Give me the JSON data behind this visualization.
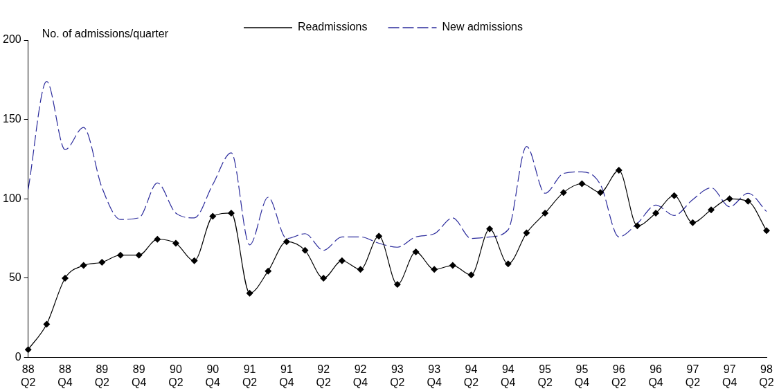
{
  "chart_data": {
    "type": "line",
    "ylabel": "No. of admissions/quarter",
    "categories": [
      "88 Q2",
      null,
      "88 Q4",
      null,
      "89 Q2",
      null,
      "89 Q4",
      null,
      "90 Q2",
      null,
      "90 Q4",
      null,
      "91 Q2",
      null,
      "91 Q4",
      null,
      "92 Q2",
      null,
      "92 Q4",
      null,
      "93 Q2",
      null,
      "93 Q4",
      null,
      "94 Q2",
      null,
      "94 Q4",
      null,
      "95 Q2",
      null,
      "95 Q4",
      null,
      "96 Q2",
      null,
      "96 Q4",
      null,
      "97 Q2",
      null,
      "97 Q4",
      null,
      "98 Q2"
    ],
    "series": [
      {
        "name": "Readmissions",
        "color": "#000000",
        "marker": "diamond",
        "line_style": "solid",
        "values": [
          5,
          21,
          50,
          58,
          60,
          64.5,
          64.5,
          74.5,
          72,
          61,
          89,
          91,
          40.5,
          54.5,
          73,
          67.5,
          50,
          61,
          55.5,
          76.5,
          46,
          66.5,
          55.5,
          58,
          52,
          81,
          59,
          78.5,
          91,
          104,
          109.5,
          104,
          118,
          83,
          91,
          102,
          85,
          93,
          100,
          98.5,
          80
        ]
      },
      {
        "name": "New admissions",
        "color": "#2b2b9c",
        "marker": "none",
        "line_style": "dashed",
        "values": [
          106,
          174,
          131,
          145,
          107,
          87,
          88,
          110,
          91,
          88,
          109,
          129,
          71,
          101,
          75,
          78,
          67.5,
          76,
          76,
          72,
          69.5,
          76,
          78,
          88,
          75,
          76,
          80.5,
          133,
          103.5,
          116,
          117,
          109,
          76,
          84.5,
          96,
          89.5,
          99.5,
          107,
          95,
          103.5,
          92
        ]
      }
    ],
    "ylim": [
      0,
      200
    ],
    "yticks": [
      0,
      50,
      100,
      150,
      200
    ],
    "grid": false,
    "legend": "top"
  }
}
